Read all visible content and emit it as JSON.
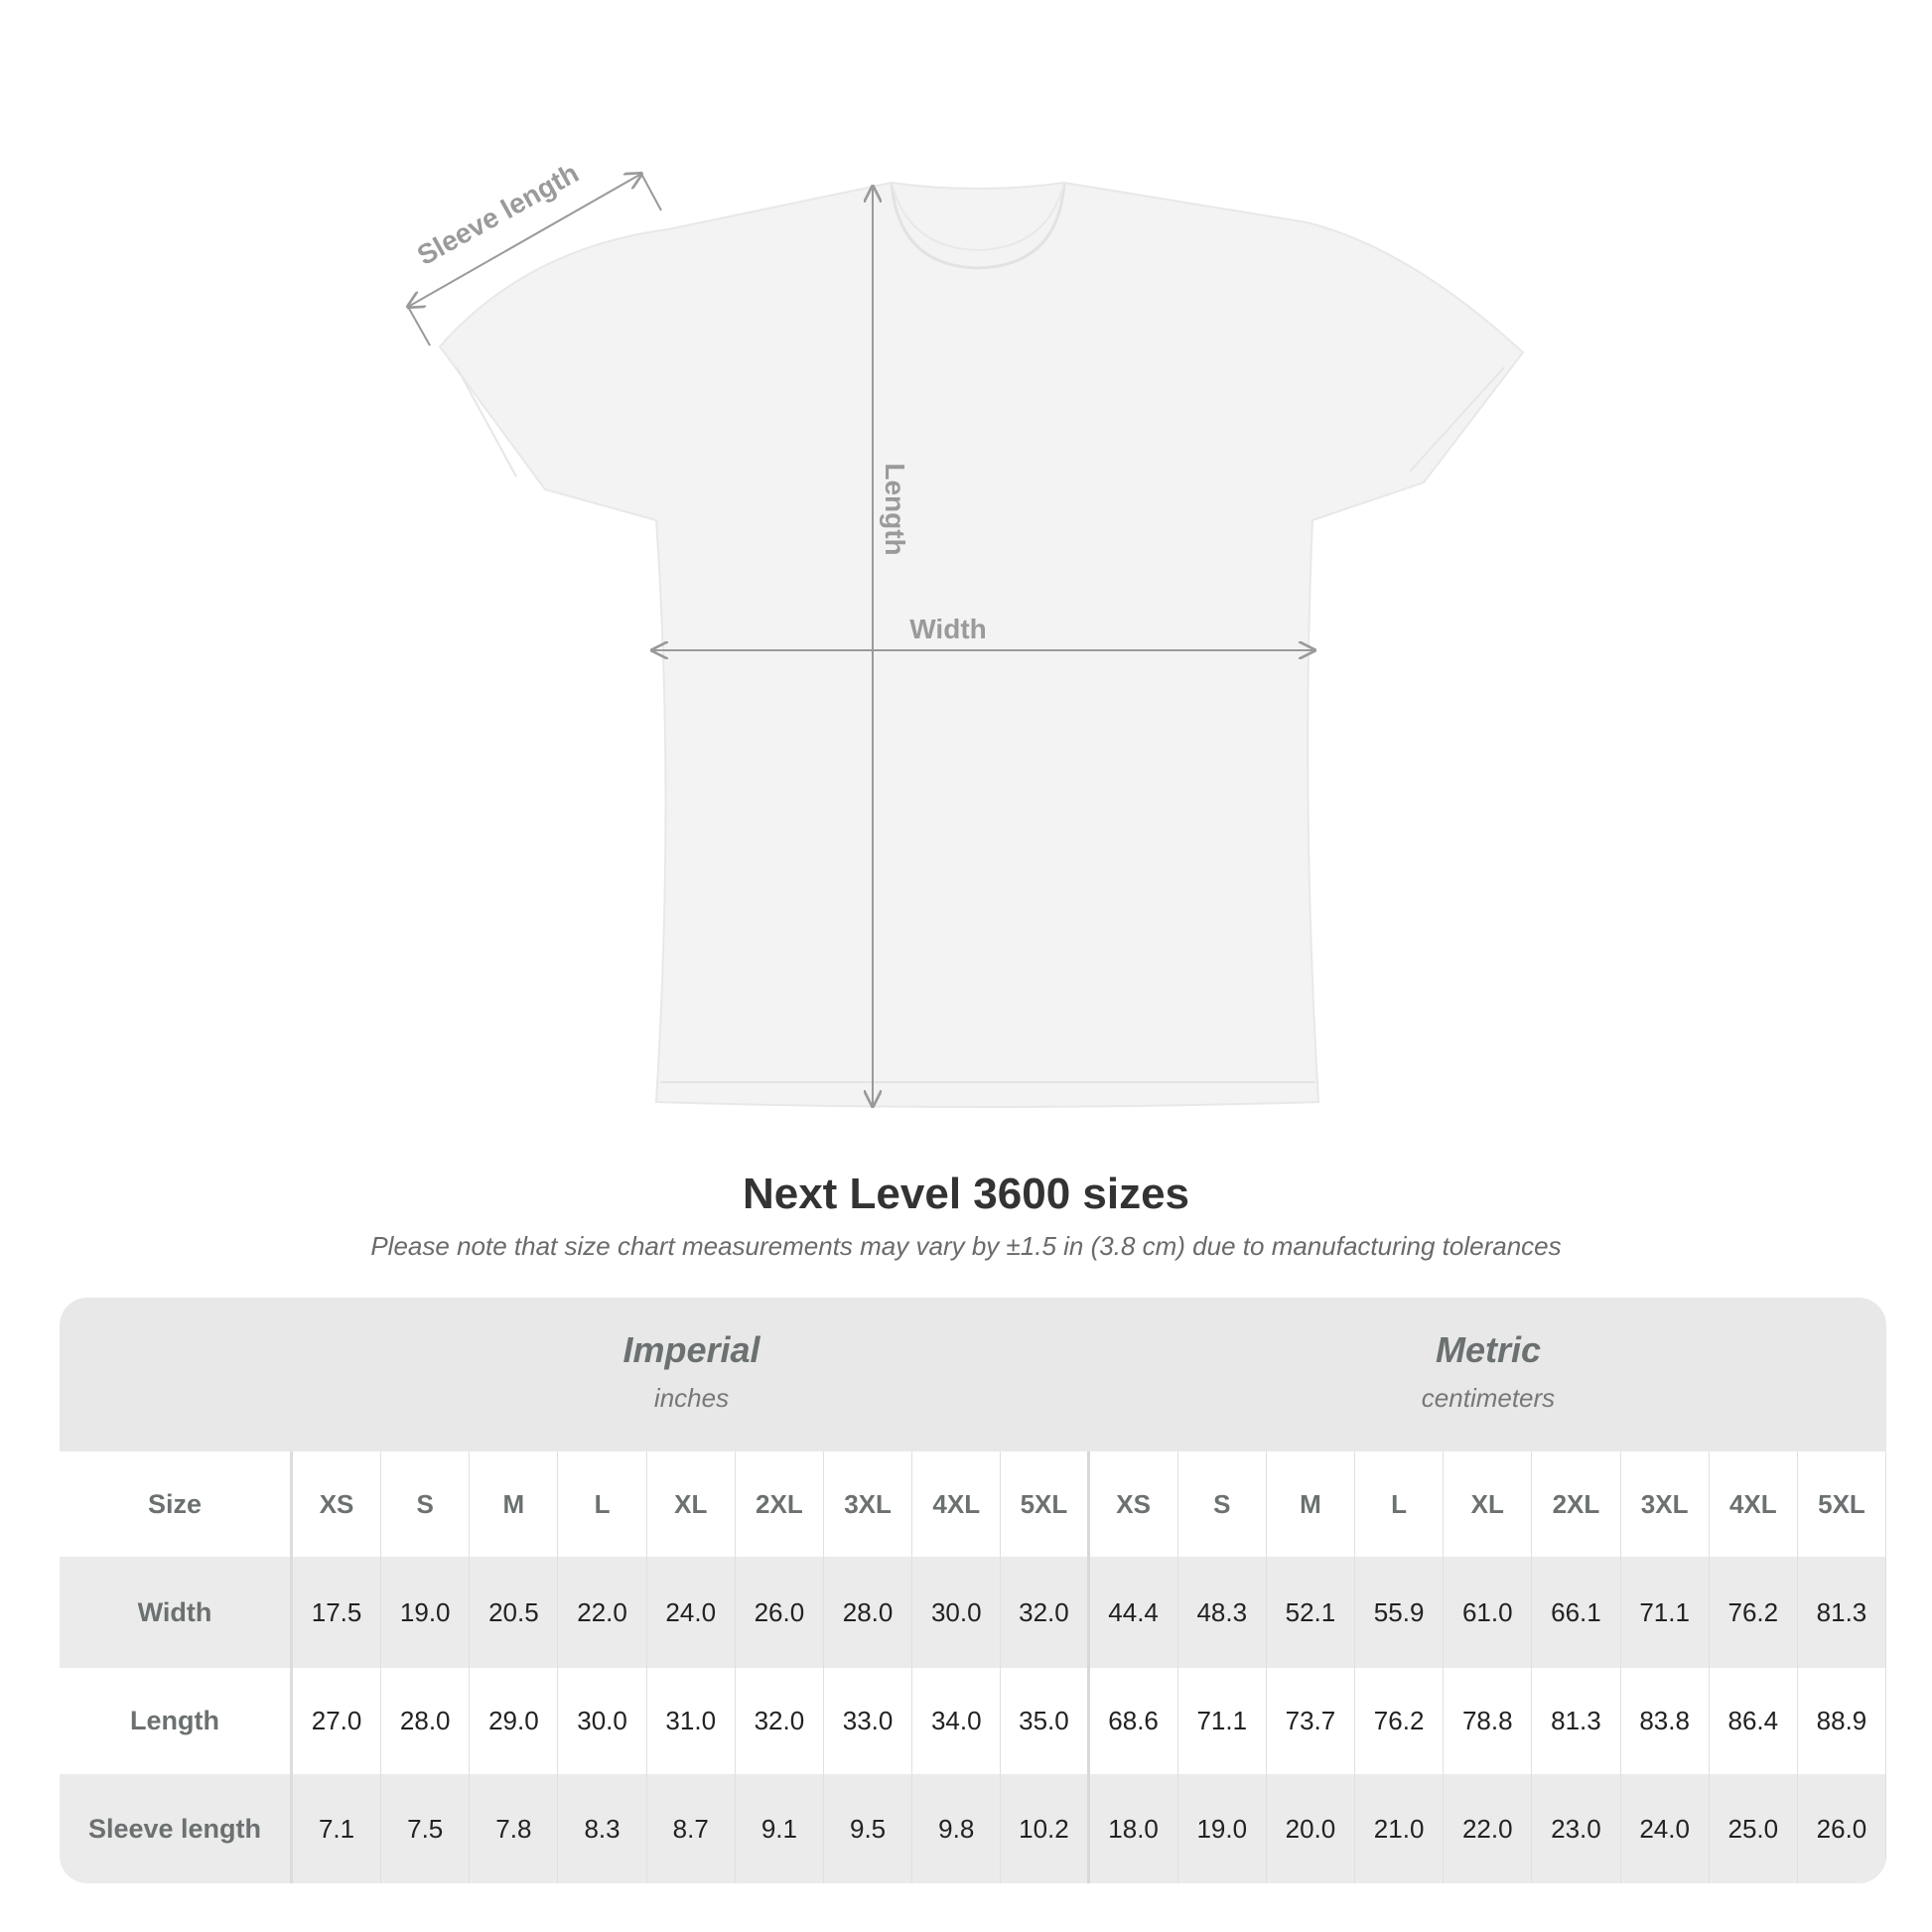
{
  "diagram": {
    "sleeve_label": "Sleeve length",
    "length_label": "Length",
    "width_label": "Width",
    "arrow_color": "#9a9a9a",
    "shirt_color": "#f3f3f3"
  },
  "title": "Next Level 3600 sizes",
  "note": "Please note that size chart measurements may vary by ±1.5 in (3.8 cm) due to manufacturing tolerances",
  "table": {
    "imperial": {
      "title": "Imperial",
      "unit": "inches"
    },
    "metric": {
      "title": "Metric",
      "unit": "centimeters"
    },
    "size_label": "Size",
    "sizes": [
      "XS",
      "S",
      "M",
      "L",
      "XL",
      "2XL",
      "3XL",
      "4XL",
      "5XL"
    ],
    "rows": [
      {
        "label": "Width",
        "imperial": [
          "17.5",
          "19.0",
          "20.5",
          "22.0",
          "24.0",
          "26.0",
          "28.0",
          "30.0",
          "32.0"
        ],
        "metric": [
          "44.4",
          "48.3",
          "52.1",
          "55.9",
          "61.0",
          "66.1",
          "71.1",
          "76.2",
          "81.3"
        ]
      },
      {
        "label": "Length",
        "imperial": [
          "27.0",
          "28.0",
          "29.0",
          "30.0",
          "31.0",
          "32.0",
          "33.0",
          "34.0",
          "35.0"
        ],
        "metric": [
          "68.6",
          "71.1",
          "73.7",
          "76.2",
          "78.8",
          "81.3",
          "83.8",
          "86.4",
          "88.9"
        ]
      },
      {
        "label": "Sleeve length",
        "imperial": [
          "7.1",
          "7.5",
          "7.8",
          "8.3",
          "8.7",
          "9.1",
          "9.5",
          "9.8",
          "10.2"
        ],
        "metric": [
          "18.0",
          "19.0",
          "20.0",
          "21.0",
          "22.0",
          "23.0",
          "24.0",
          "25.0",
          "26.0"
        ]
      }
    ]
  }
}
